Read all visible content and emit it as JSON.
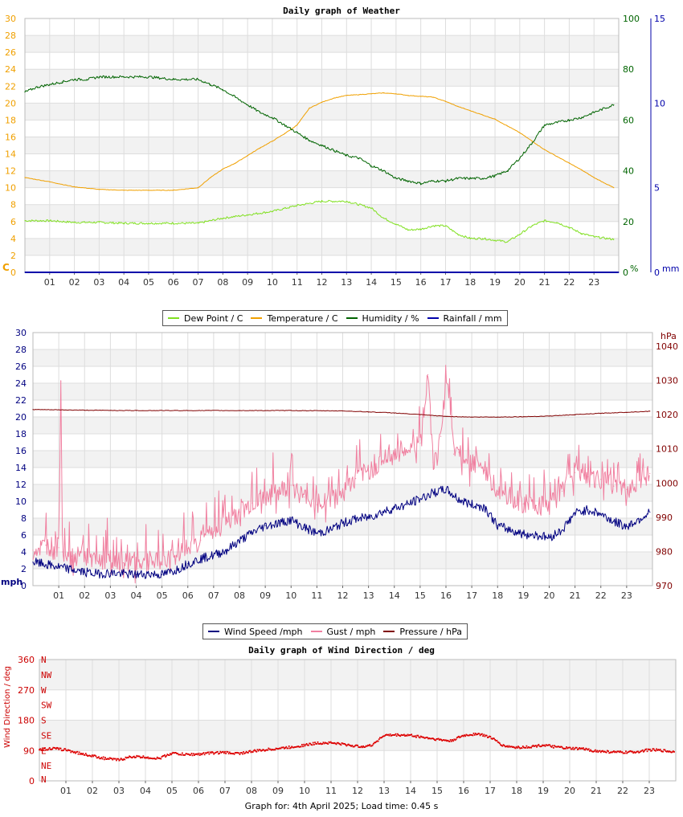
{
  "footer": "Graph for: 4th April 2025; Load time: 0.45 s",
  "x_ticks": [
    "01",
    "02",
    "03",
    "04",
    "05",
    "06",
    "07",
    "08",
    "09",
    "10",
    "11",
    "12",
    "13",
    "14",
    "15",
    "16",
    "17",
    "18",
    "19",
    "20",
    "21",
    "22",
    "23"
  ],
  "chart_data": [
    {
      "type": "line",
      "title": "Daily graph of Weather",
      "x_unit": "hour",
      "x_range": [
        0,
        24
      ],
      "left_axis": {
        "label": "C",
        "range": [
          0,
          30
        ],
        "ticks": [
          0,
          2,
          4,
          6,
          8,
          10,
          12,
          14,
          16,
          18,
          20,
          22,
          24,
          26,
          28,
          30
        ],
        "color": "#f0a000"
      },
      "right_axis_1": {
        "label": "%",
        "range": [
          0,
          100
        ],
        "ticks": [
          0,
          20,
          40,
          60,
          80,
          100
        ],
        "color": "#006400"
      },
      "right_axis_2": {
        "label": "mm",
        "range": [
          0,
          15
        ],
        "ticks": [
          0,
          5,
          10,
          15
        ],
        "color": "#0000aa"
      },
      "grid": true,
      "legend": {
        "position": "bottom",
        "entries": [
          "Dew Point / C",
          "Temperature / C",
          "Humidity / %",
          "Rainfall / mm"
        ]
      },
      "series": [
        {
          "name": "Dew Point / C",
          "axis": "left",
          "color": "#80e020",
          "x": [
            0,
            1,
            2,
            3,
            4,
            5,
            6,
            7,
            8,
            9,
            10,
            11,
            12,
            13,
            14,
            14.5,
            15,
            15.5,
            16,
            16.5,
            17,
            17.5,
            18,
            18.5,
            19,
            19.5,
            20,
            20.5,
            21,
            21.5,
            22,
            22.5,
            23,
            23.8
          ],
          "y": [
            6.1,
            6.1,
            5.9,
            5.9,
            5.8,
            5.8,
            5.8,
            5.8,
            6.4,
            6.8,
            7.2,
            7.9,
            8.4,
            8.4,
            7.6,
            6.4,
            5.7,
            5.0,
            5.1,
            5.5,
            5.5,
            4.5,
            4.0,
            4.0,
            3.8,
            3.6,
            4.5,
            5.5,
            6.1,
            5.9,
            5.3,
            4.6,
            4.2,
            3.9
          ]
        },
        {
          "name": "Temperature / C",
          "axis": "left",
          "color": "#f0a000",
          "x": [
            0,
            1,
            2,
            3,
            4,
            5,
            6,
            7,
            7.5,
            8,
            8.5,
            9,
            9.5,
            10,
            10.5,
            11,
            11.5,
            12,
            12.5,
            13,
            13.5,
            14,
            14.5,
            15,
            15.5,
            16,
            16.5,
            17,
            17.5,
            18,
            18.5,
            19,
            19.5,
            20,
            20.5,
            21,
            21.5,
            22,
            22.5,
            23,
            23.8
          ],
          "y": [
            11.2,
            10.7,
            10.1,
            9.8,
            9.7,
            9.7,
            9.7,
            10.0,
            11.2,
            12.2,
            12.9,
            13.8,
            14.7,
            15.5,
            16.4,
            17.4,
            19.4,
            20.1,
            20.6,
            20.9,
            21.0,
            21.1,
            21.2,
            21.1,
            20.9,
            20.8,
            20.7,
            20.2,
            19.6,
            19.1,
            18.6,
            18.1,
            17.3,
            16.5,
            15.5,
            14.5,
            13.7,
            12.9,
            12.1,
            11.2,
            10.0
          ]
        },
        {
          "name": "Humidity / %",
          "axis": "right_1",
          "color": "#006400",
          "x": [
            0,
            0.5,
            1,
            1.5,
            2,
            2.5,
            3,
            4,
            5,
            6,
            7,
            7.5,
            8,
            8.5,
            9,
            9.5,
            10,
            10.5,
            11,
            11.5,
            12,
            12.5,
            13,
            13.5,
            14,
            14.5,
            15,
            15.5,
            16,
            16.5,
            17,
            17.5,
            18,
            18.5,
            19,
            19.5,
            20,
            20.5,
            21,
            21.5,
            22,
            22.5,
            23,
            23.8
          ],
          "y": [
            71,
            73,
            74,
            75,
            76,
            76,
            77,
            77,
            77,
            76,
            76,
            74,
            72,
            69,
            66,
            63,
            61,
            58,
            55,
            52,
            50,
            48,
            46,
            45,
            42,
            40,
            37,
            36,
            35,
            36,
            36,
            37,
            37,
            37,
            38,
            40,
            45,
            51,
            58,
            59,
            60,
            61,
            63,
            66
          ]
        },
        {
          "name": "Rainfall / mm",
          "axis": "right_2",
          "color": "#0000aa",
          "x": [
            0,
            24
          ],
          "y": [
            0,
            0
          ]
        }
      ]
    },
    {
      "type": "line",
      "title": "",
      "x_unit": "hour",
      "x_range": [
        0,
        24
      ],
      "left_axis": {
        "label": "mph",
        "range": [
          0,
          30
        ],
        "ticks": [
          0,
          2,
          4,
          6,
          8,
          10,
          12,
          14,
          16,
          18,
          20,
          22,
          24,
          26,
          28,
          30
        ],
        "color": "#000080"
      },
      "right_axis": {
        "label": "hPa",
        "range": [
          970,
          1044
        ],
        "ticks": [
          970,
          980,
          990,
          1000,
          1010,
          1020,
          1030,
          1040
        ],
        "color": "#800000"
      },
      "grid": true,
      "legend": {
        "position": "bottom",
        "entries": [
          "Wind Speed /mph",
          "Gust / mph",
          "Pressure / hPa"
        ]
      },
      "series": [
        {
          "name": "Wind Speed /mph",
          "axis": "left",
          "color": "#000080",
          "x": [
            0,
            0.5,
            1,
            1.5,
            2,
            2.5,
            3,
            3.5,
            4,
            4.5,
            5,
            5.5,
            6,
            6.5,
            7,
            7.5,
            8,
            8.5,
            9,
            9.5,
            10,
            10.5,
            11,
            11.5,
            12,
            12.5,
            13,
            13.5,
            14,
            14.5,
            15,
            15.5,
            16,
            16.5,
            17,
            17.5,
            18,
            18.5,
            19,
            19.5,
            20,
            20.5,
            21,
            21.5,
            22,
            22.5,
            23,
            23.5,
            23.9
          ],
          "y": [
            2.8,
            2.5,
            2.2,
            1.9,
            1.6,
            1.4,
            1.5,
            1.4,
            1.3,
            1.4,
            1.3,
            1.8,
            2.6,
            3.2,
            3.6,
            4.2,
            5.3,
            6.3,
            7.1,
            7.4,
            7.8,
            6.9,
            6.2,
            6.6,
            7.4,
            7.9,
            8.1,
            8.7,
            9.2,
            9.6,
            10.3,
            11.0,
            11.4,
            10.2,
            9.6,
            9.3,
            7.1,
            6.6,
            6.1,
            6.0,
            5.7,
            6.6,
            8.6,
            9.0,
            8.5,
            7.6,
            7.0,
            7.9,
            8.7
          ]
        },
        {
          "name": "Gust / mph",
          "axis": "left",
          "color": "#f080a0",
          "x": [
            0,
            0.5,
            1,
            1.08,
            1.15,
            1.5,
            2,
            2.5,
            3,
            3.5,
            4,
            4.5,
            5,
            5.5,
            6,
            6.5,
            7,
            7.5,
            8,
            8.5,
            9,
            9.5,
            10,
            10.5,
            11,
            11.5,
            12,
            12.5,
            13,
            13.5,
            14,
            14.5,
            15,
            15.3,
            15.5,
            15.8,
            16,
            16.3,
            16.5,
            17,
            17.5,
            18,
            18.5,
            19,
            19.5,
            20,
            20.5,
            21,
            21.5,
            22,
            22.5,
            23,
            23.5,
            23.9
          ],
          "y": [
            4.2,
            4.8,
            4.5,
            24.2,
            4.0,
            3.5,
            3.3,
            2.9,
            2.9,
            2.7,
            2.8,
            2.9,
            2.8,
            3.5,
            4.4,
            5.4,
            6.4,
            7.4,
            8.7,
            9.8,
            10.4,
            11.2,
            11.9,
            10.5,
            9.6,
            10.1,
            11.0,
            12.7,
            13.6,
            14.7,
            15.6,
            16.0,
            16.9,
            25.0,
            14.6,
            17.7,
            25.4,
            15.6,
            15.8,
            14.4,
            13.7,
            11.2,
            10.5,
            9.7,
            9.5,
            9.3,
            11.2,
            13.4,
            12.9,
            12.6,
            11.8,
            11.4,
            12.6,
            13.3
          ]
        },
        {
          "name": "Pressure / hPa",
          "axis": "right",
          "color": "#800000",
          "x": [
            0,
            2,
            4,
            6,
            8,
            10,
            12,
            13,
            14,
            15,
            16,
            17,
            18,
            19,
            20,
            21,
            22,
            23,
            23.9
          ],
          "y": [
            1021.5,
            1021.3,
            1021.2,
            1021.2,
            1021.2,
            1021.2,
            1021.1,
            1020.8,
            1020.5,
            1020.0,
            1019.5,
            1019.3,
            1019.3,
            1019.4,
            1019.6,
            1020.0,
            1020.4,
            1020.7,
            1021.0
          ]
        }
      ]
    },
    {
      "type": "scatter",
      "title": "Daily graph of Wind Direction / deg",
      "x_unit": "hour",
      "x_range": [
        0,
        24
      ],
      "left_axis": {
        "label": "Wind Direction / deg",
        "range": [
          0,
          360
        ],
        "ticks": [
          0,
          90,
          180,
          270,
          360
        ],
        "color": "#cc0000"
      },
      "compass_labels": [
        "N",
        "NE",
        "E",
        "SE",
        "S",
        "SW",
        "W",
        "NW",
        "N"
      ],
      "grid": true,
      "series": [
        {
          "name": "Wind Direction / deg",
          "color": "#dd0000",
          "x": [
            0,
            0.5,
            1,
            1.5,
            2,
            2.5,
            3,
            3.5,
            4,
            4.5,
            5,
            5.5,
            6,
            6.5,
            7,
            7.5,
            8,
            8.5,
            9,
            9.5,
            10,
            10.5,
            11,
            11.5,
            12,
            12.5,
            13,
            13.5,
            14,
            14.5,
            15,
            15.5,
            16,
            16.5,
            17,
            17.5,
            18,
            18.5,
            19,
            19.5,
            20,
            20.5,
            21,
            21.5,
            22,
            22.5,
            23,
            23.5,
            23.9
          ],
          "y": [
            93,
            96,
            92,
            82,
            74,
            66,
            62,
            72,
            70,
            66,
            82,
            78,
            79,
            83,
            84,
            81,
            87,
            92,
            96,
            100,
            106,
            112,
            113,
            108,
            102,
            104,
            135,
            136,
            135,
            129,
            123,
            118,
            134,
            140,
            130,
            104,
            99,
            101,
            106,
            100,
            96,
            95,
            88,
            86,
            84,
            86,
            92,
            90,
            86
          ]
        }
      ]
    }
  ]
}
